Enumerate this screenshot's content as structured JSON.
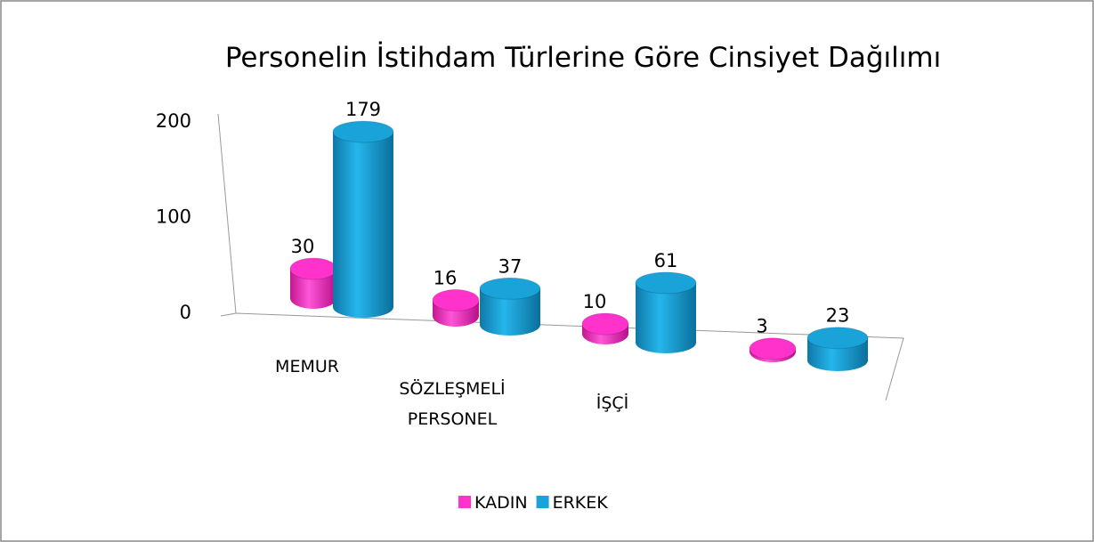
{
  "chart_data": {
    "type": "bar3d",
    "title": "Personelin İstihdam Türlerine Göre Cinsiyet Dağılımı",
    "categories": [
      "MEMUR",
      "SÖZLEŞMELİ PERSONEL",
      "İŞÇİ",
      null
    ],
    "series": [
      {
        "name": "KADIN",
        "color": "#ff33cc",
        "values": [
          30,
          16,
          10,
          3
        ]
      },
      {
        "name": "ERKEK",
        "color": "#1aa3d9",
        "values": [
          179,
          37,
          61,
          23
        ]
      }
    ],
    "ylim": [
      0,
      200
    ],
    "yticks": [
      0,
      100,
      200
    ],
    "legend": "bottom"
  }
}
